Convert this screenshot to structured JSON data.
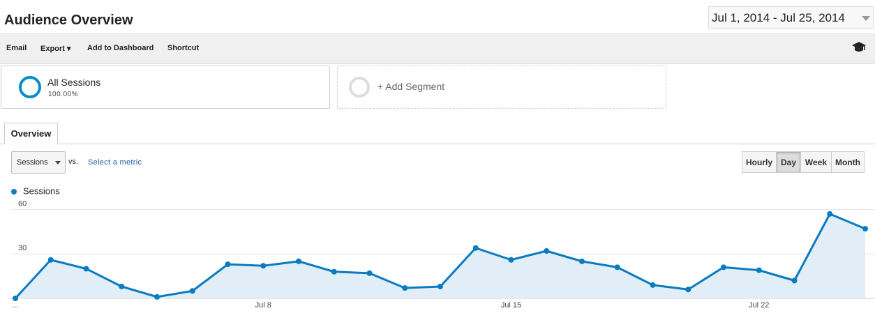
{
  "header": {
    "title": "Audience Overview",
    "date_range": "Jul 1, 2014 - Jul 25, 2014"
  },
  "toolbar": {
    "items": [
      "Email",
      "Export",
      "Add to Dashboard",
      "Shortcut"
    ]
  },
  "segments": {
    "active": {
      "name": "All Sessions",
      "share": "100.00%"
    },
    "add": "+ Add Segment"
  },
  "tabs": [
    "Overview"
  ],
  "controls": {
    "metric": "Sessions",
    "vs": "vs.",
    "select_metric": "Select a metric",
    "intervals": [
      "Hourly",
      "Day",
      "Week",
      "Month"
    ],
    "selected_interval": "Day"
  },
  "chart_data": {
    "type": "line",
    "categories": [
      "...",
      null,
      null,
      null,
      null,
      null,
      null,
      "Jul 8",
      null,
      null,
      null,
      null,
      null,
      null,
      "Jul 15",
      null,
      null,
      null,
      null,
      null,
      null,
      "Jul 22",
      null,
      null,
      null
    ],
    "series": [
      {
        "name": "Sessions",
        "color": "#0a7bc0",
        "values": [
          0,
          26,
          20,
          8,
          1,
          5,
          23,
          22,
          25,
          18,
          17,
          7,
          8,
          34,
          26,
          32,
          25,
          21,
          9,
          6,
          21,
          19,
          12,
          57,
          47
        ]
      }
    ],
    "ylim": [
      0,
      64
    ],
    "yticks": [
      30,
      60
    ],
    "grid": true,
    "area": true
  }
}
